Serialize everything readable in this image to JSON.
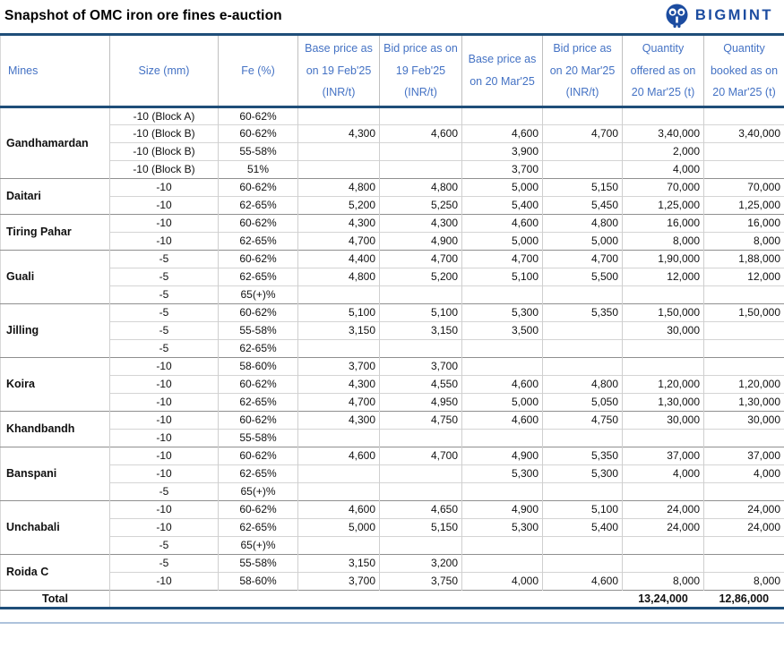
{
  "title": "Snapshot of OMC iron ore fines e-auction",
  "logo": {
    "text": "BIGMINT"
  },
  "colors": {
    "accent_navy": "#1F4E79",
    "header_blue": "#4472C4",
    "logo_blue": "#1C4CA0",
    "grid_light": "#CFCFCF",
    "grid_group": "#8F8F8F"
  },
  "table": {
    "headers": [
      "Mines",
      "Size (mm)",
      "Fe (%)",
      "Base price as on 19 Feb'25 (INR/t)",
      "Bid price as on 19 Feb'25 (INR/t)",
      "Base price as on 20 Mar'25",
      "Bid price as on 20 Mar'25 (INR/t)",
      "Quantity offered as on 20 Mar'25 (t)",
      "Quantity booked as on 20 Mar'25 (t)"
    ],
    "groups": [
      {
        "mine": "Gandhamardan",
        "rows": [
          {
            "size": "-10 (Block A)",
            "fe": "60-62%",
            "base_feb": "",
            "bid_feb": "",
            "base_mar": "",
            "bid_mar": "",
            "qty_offered": "",
            "qty_booked": ""
          },
          {
            "size": "-10 (Block B)",
            "fe": "60-62%",
            "base_feb": "4,300",
            "bid_feb": "4,600",
            "base_mar": "4,600",
            "bid_mar": "4,700",
            "qty_offered": "3,40,000",
            "qty_booked": "3,40,000"
          },
          {
            "size": "-10 (Block B)",
            "fe": "55-58%",
            "base_feb": "",
            "bid_feb": "",
            "base_mar": "3,900",
            "bid_mar": "",
            "qty_offered": "2,000",
            "qty_booked": ""
          },
          {
            "size": "-10 (Block B)",
            "fe": "51%",
            "base_feb": "",
            "bid_feb": "",
            "base_mar": "3,700",
            "bid_mar": "",
            "qty_offered": "4,000",
            "qty_booked": ""
          }
        ]
      },
      {
        "mine": "Daitari",
        "rows": [
          {
            "size": "-10",
            "fe": "60-62%",
            "base_feb": "4,800",
            "bid_feb": "4,800",
            "base_mar": "5,000",
            "bid_mar": "5,150",
            "qty_offered": "70,000",
            "qty_booked": "70,000"
          },
          {
            "size": "-10",
            "fe": "62-65%",
            "base_feb": "5,200",
            "bid_feb": "5,250",
            "base_mar": "5,400",
            "bid_mar": "5,450",
            "qty_offered": "1,25,000",
            "qty_booked": "1,25,000"
          }
        ]
      },
      {
        "mine": "Tiring Pahar",
        "rows": [
          {
            "size": "-10",
            "fe": "60-62%",
            "base_feb": "4,300",
            "bid_feb": "4,300",
            "base_mar": "4,600",
            "bid_mar": "4,800",
            "qty_offered": "16,000",
            "qty_booked": "16,000"
          },
          {
            "size": "-10",
            "fe": "62-65%",
            "base_feb": "4,700",
            "bid_feb": "4,900",
            "base_mar": "5,000",
            "bid_mar": "5,000",
            "qty_offered": "8,000",
            "qty_booked": "8,000"
          }
        ]
      },
      {
        "mine": "Guali",
        "rows": [
          {
            "size": "-5",
            "fe": "60-62%",
            "base_feb": "4,400",
            "bid_feb": "4,700",
            "base_mar": "4,700",
            "bid_mar": "4,700",
            "qty_offered": "1,90,000",
            "qty_booked": "1,88,000"
          },
          {
            "size": "-5",
            "fe": "62-65%",
            "base_feb": "4,800",
            "bid_feb": "5,200",
            "base_mar": "5,100",
            "bid_mar": "5,500",
            "qty_offered": "12,000",
            "qty_booked": "12,000"
          },
          {
            "size": "-5",
            "fe": "65(+)%",
            "base_feb": "",
            "bid_feb": "",
            "base_mar": "",
            "bid_mar": "",
            "qty_offered": "",
            "qty_booked": ""
          }
        ]
      },
      {
        "mine": "Jilling",
        "rows": [
          {
            "size": "-5",
            "fe": "60-62%",
            "base_feb": "5,100",
            "bid_feb": "5,100",
            "base_mar": "5,300",
            "bid_mar": "5,350",
            "qty_offered": "1,50,000",
            "qty_booked": "1,50,000"
          },
          {
            "size": "-5",
            "fe": "55-58%",
            "base_feb": "3,150",
            "bid_feb": "3,150",
            "base_mar": "3,500",
            "bid_mar": "",
            "qty_offered": "30,000",
            "qty_booked": ""
          },
          {
            "size": "-5",
            "fe": "62-65%",
            "base_feb": "",
            "bid_feb": "",
            "base_mar": "",
            "bid_mar": "",
            "qty_offered": "",
            "qty_booked": ""
          }
        ]
      },
      {
        "mine": "Koira",
        "rows": [
          {
            "size": "-10",
            "fe": "58-60%",
            "base_feb": "3,700",
            "bid_feb": "3,700",
            "base_mar": "",
            "bid_mar": "",
            "qty_offered": "",
            "qty_booked": ""
          },
          {
            "size": "-10",
            "fe": "60-62%",
            "base_feb": "4,300",
            "bid_feb": "4,550",
            "base_mar": "4,600",
            "bid_mar": "4,800",
            "qty_offered": "1,20,000",
            "qty_booked": "1,20,000"
          },
          {
            "size": "-10",
            "fe": "62-65%",
            "base_feb": "4,700",
            "bid_feb": "4,950",
            "base_mar": "5,000",
            "bid_mar": "5,050",
            "qty_offered": "1,30,000",
            "qty_booked": "1,30,000"
          }
        ]
      },
      {
        "mine": "Khandbandh",
        "rows": [
          {
            "size": "-10",
            "fe": "60-62%",
            "base_feb": "4,300",
            "bid_feb": "4,750",
            "base_mar": "4,600",
            "bid_mar": "4,750",
            "qty_offered": "30,000",
            "qty_booked": "30,000"
          },
          {
            "size": "-10",
            "fe": "55-58%",
            "base_feb": "",
            "bid_feb": "",
            "base_mar": "",
            "bid_mar": "",
            "qty_offered": "",
            "qty_booked": ""
          }
        ]
      },
      {
        "mine": "Banspani",
        "rows": [
          {
            "size": "-10",
            "fe": "60-62%",
            "base_feb": "4,600",
            "bid_feb": "4,700",
            "base_mar": "4,900",
            "bid_mar": "5,350",
            "qty_offered": "37,000",
            "qty_booked": "37,000"
          },
          {
            "size": "-10",
            "fe": "62-65%",
            "base_feb": "",
            "bid_feb": "",
            "base_mar": "5,300",
            "bid_mar": "5,300",
            "qty_offered": "4,000",
            "qty_booked": "4,000"
          },
          {
            "size": "-5",
            "fe": "65(+)%",
            "base_feb": "",
            "bid_feb": "",
            "base_mar": "",
            "bid_mar": "",
            "qty_offered": "",
            "qty_booked": ""
          }
        ]
      },
      {
        "mine": "Unchabali",
        "rows": [
          {
            "size": "-10",
            "fe": "60-62%",
            "base_feb": "4,600",
            "bid_feb": "4,650",
            "base_mar": "4,900",
            "bid_mar": "5,100",
            "qty_offered": "24,000",
            "qty_booked": "24,000"
          },
          {
            "size": "-10",
            "fe": "62-65%",
            "base_feb": "5,000",
            "bid_feb": "5,150",
            "base_mar": "5,300",
            "bid_mar": "5,400",
            "qty_offered": "24,000",
            "qty_booked": "24,000"
          },
          {
            "size": "-5",
            "fe": "65(+)%",
            "base_feb": "",
            "bid_feb": "",
            "base_mar": "",
            "bid_mar": "",
            "qty_offered": "",
            "qty_booked": ""
          }
        ]
      },
      {
        "mine": "Roida C",
        "rows": [
          {
            "size": "-5",
            "fe": "55-58%",
            "base_feb": "3,150",
            "bid_feb": "3,200",
            "base_mar": "",
            "bid_mar": "",
            "qty_offered": "",
            "qty_booked": ""
          },
          {
            "size": "-10",
            "fe": "58-60%",
            "base_feb": "3,700",
            "bid_feb": "3,750",
            "base_mar": "4,000",
            "bid_mar": "4,600",
            "qty_offered": "8,000",
            "qty_booked": "8,000"
          }
        ]
      }
    ],
    "total": {
      "label": "Total",
      "qty_offered": "13,24,000",
      "qty_booked": "12,86,000"
    }
  }
}
